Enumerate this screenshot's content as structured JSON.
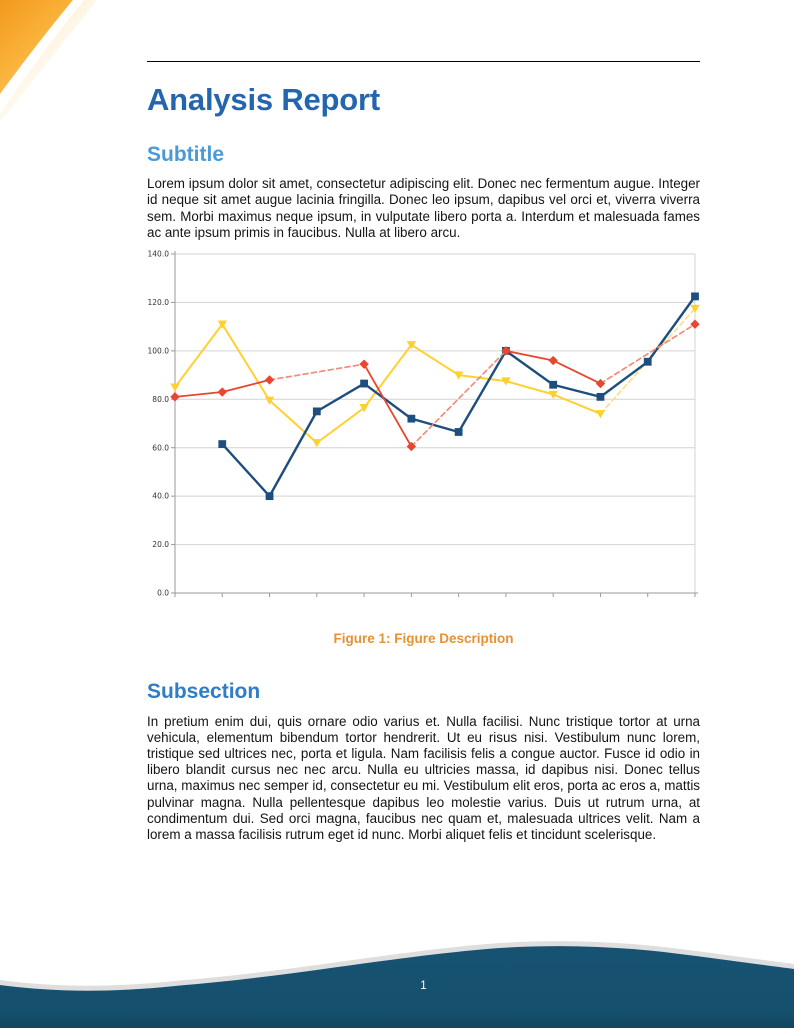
{
  "document": {
    "title": "Analysis Report",
    "subtitle": "Subtitle",
    "paragraph_1": "Lorem ipsum dolor sit amet, consectetur adipiscing elit. Donec nec fermentum augue. Integer id neque sit amet augue lacinia fringilla. Donec leo ipsum, dapibus vel orci et, viverra viverra sem. Morbi maximus neque ipsum, in vulputate libero porta a. Interdum et malesuada fames ac ante ipsum primis in faucibus. Nulla at libero arcu.",
    "figure_caption": "Figure 1: Figure Description",
    "subsection": "Subsection",
    "paragraph_2": "In pretium enim dui, quis ornare odio varius et. Nulla facilisi. Nunc tristique tortor at urna vehicula, elementum bibendum tortor hendrerit. Ut eu risus nisi. Vestibulum nunc lorem, tristique sed ultrices nec, porta et ligula. Nam facilisis felis a congue auctor. Fusce id odio in libero blandit cursus nec nec arcu. Nulla eu ultricies massa, id dapibus nisi. Donec tellus urna, maximus nec semper id, consectetur eu mi. Vestibulum elit eros, porta ac eros a, mattis pulvinar magna. Nulla pellentesque dapibus leo molestie varius. Duis ut rutrum urna, at condimentum dui. Sed orci magna, faucibus nec quam et, malesuada ultrices velit. Nam a lorem a massa facilisis rutrum eget id nunc. Morbi aliquet felis et tincidunt scelerisque.",
    "page_number": "1"
  },
  "colors": {
    "title_blue": "#2366AE",
    "subtitle_blue": "#4A9AD7",
    "subsection_blue": "#2F7EC5",
    "caption_orange": "#E59135",
    "footer_blue": "#175272",
    "corner_orange": "#F2991B"
  },
  "chart_data": {
    "type": "line",
    "title": "",
    "x": [
      1,
      2,
      3,
      4,
      5,
      6,
      7,
      8,
      9,
      10,
      11,
      12
    ],
    "x_tick_labels": [
      "",
      "",
      "",
      "",
      "",
      "",
      "",
      "",
      "",
      "",
      "",
      ""
    ],
    "ylim": [
      0,
      140
    ],
    "y_ticks": [
      0,
      20,
      40,
      60,
      80,
      100,
      120,
      140
    ],
    "y_tick_labels": [
      "0.0",
      "20.0",
      "40.0",
      "60.0",
      "80.0",
      "100.0",
      "120.0",
      "140.0"
    ],
    "grid": true,
    "legend": "none",
    "missing_values_rendered_as": "dashed lighter bridge segments across gaps",
    "series": [
      {
        "name": "yellow-triangles",
        "color": "#FFD02F",
        "dash_color": "#FAE08E",
        "marker": "triangle-down",
        "line_width": 2.0,
        "values": [
          85,
          111,
          79.5,
          62,
          76.5,
          102.5,
          90,
          87.5,
          82,
          74,
          null,
          117.5
        ]
      },
      {
        "name": "blue-squares",
        "color": "#1D4E7E",
        "dash_color": "#8AA6C2",
        "marker": "square",
        "line_width": 2.4,
        "values": [
          null,
          61.5,
          40,
          75,
          86.5,
          72,
          66.5,
          100,
          86,
          81,
          95.5,
          122.5
        ]
      },
      {
        "name": "red-diamonds",
        "color": "#E8462F",
        "dash_color": "#F08C7A",
        "marker": "diamond",
        "line_width": 1.8,
        "values": [
          81,
          83,
          88,
          null,
          94.5,
          60.5,
          null,
          100,
          96,
          86.5,
          null,
          111
        ]
      }
    ]
  }
}
